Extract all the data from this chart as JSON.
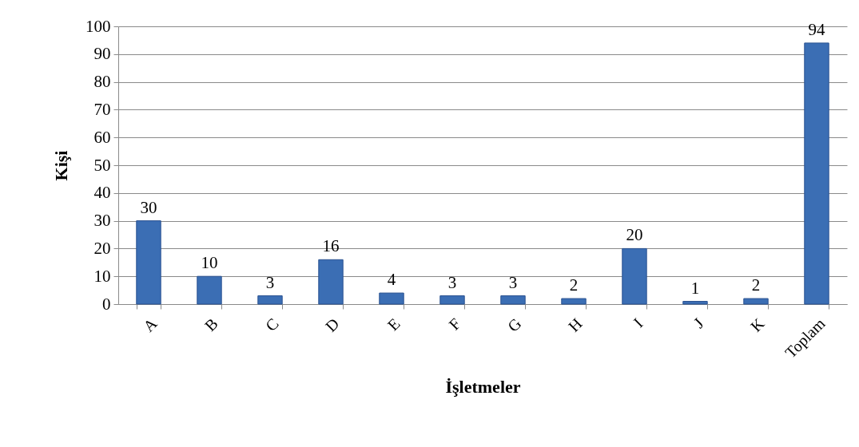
{
  "chart_data": {
    "type": "bar",
    "xlabel": "İşletmeler",
    "ylabel": "Kişi",
    "categories": [
      "A",
      "B",
      "C",
      "D",
      "E",
      "F",
      "G",
      "H",
      "I",
      "J",
      "K",
      "Toplam"
    ],
    "values": [
      30,
      10,
      3,
      16,
      4,
      3,
      3,
      2,
      20,
      1,
      2,
      94
    ],
    "color": "#3b6eb4",
    "ylim": [
      0,
      100
    ],
    "yticks": [
      0,
      10,
      20,
      30,
      40,
      50,
      60,
      70,
      80,
      90,
      100
    ],
    "grid": "y",
    "data_labels": true
  }
}
